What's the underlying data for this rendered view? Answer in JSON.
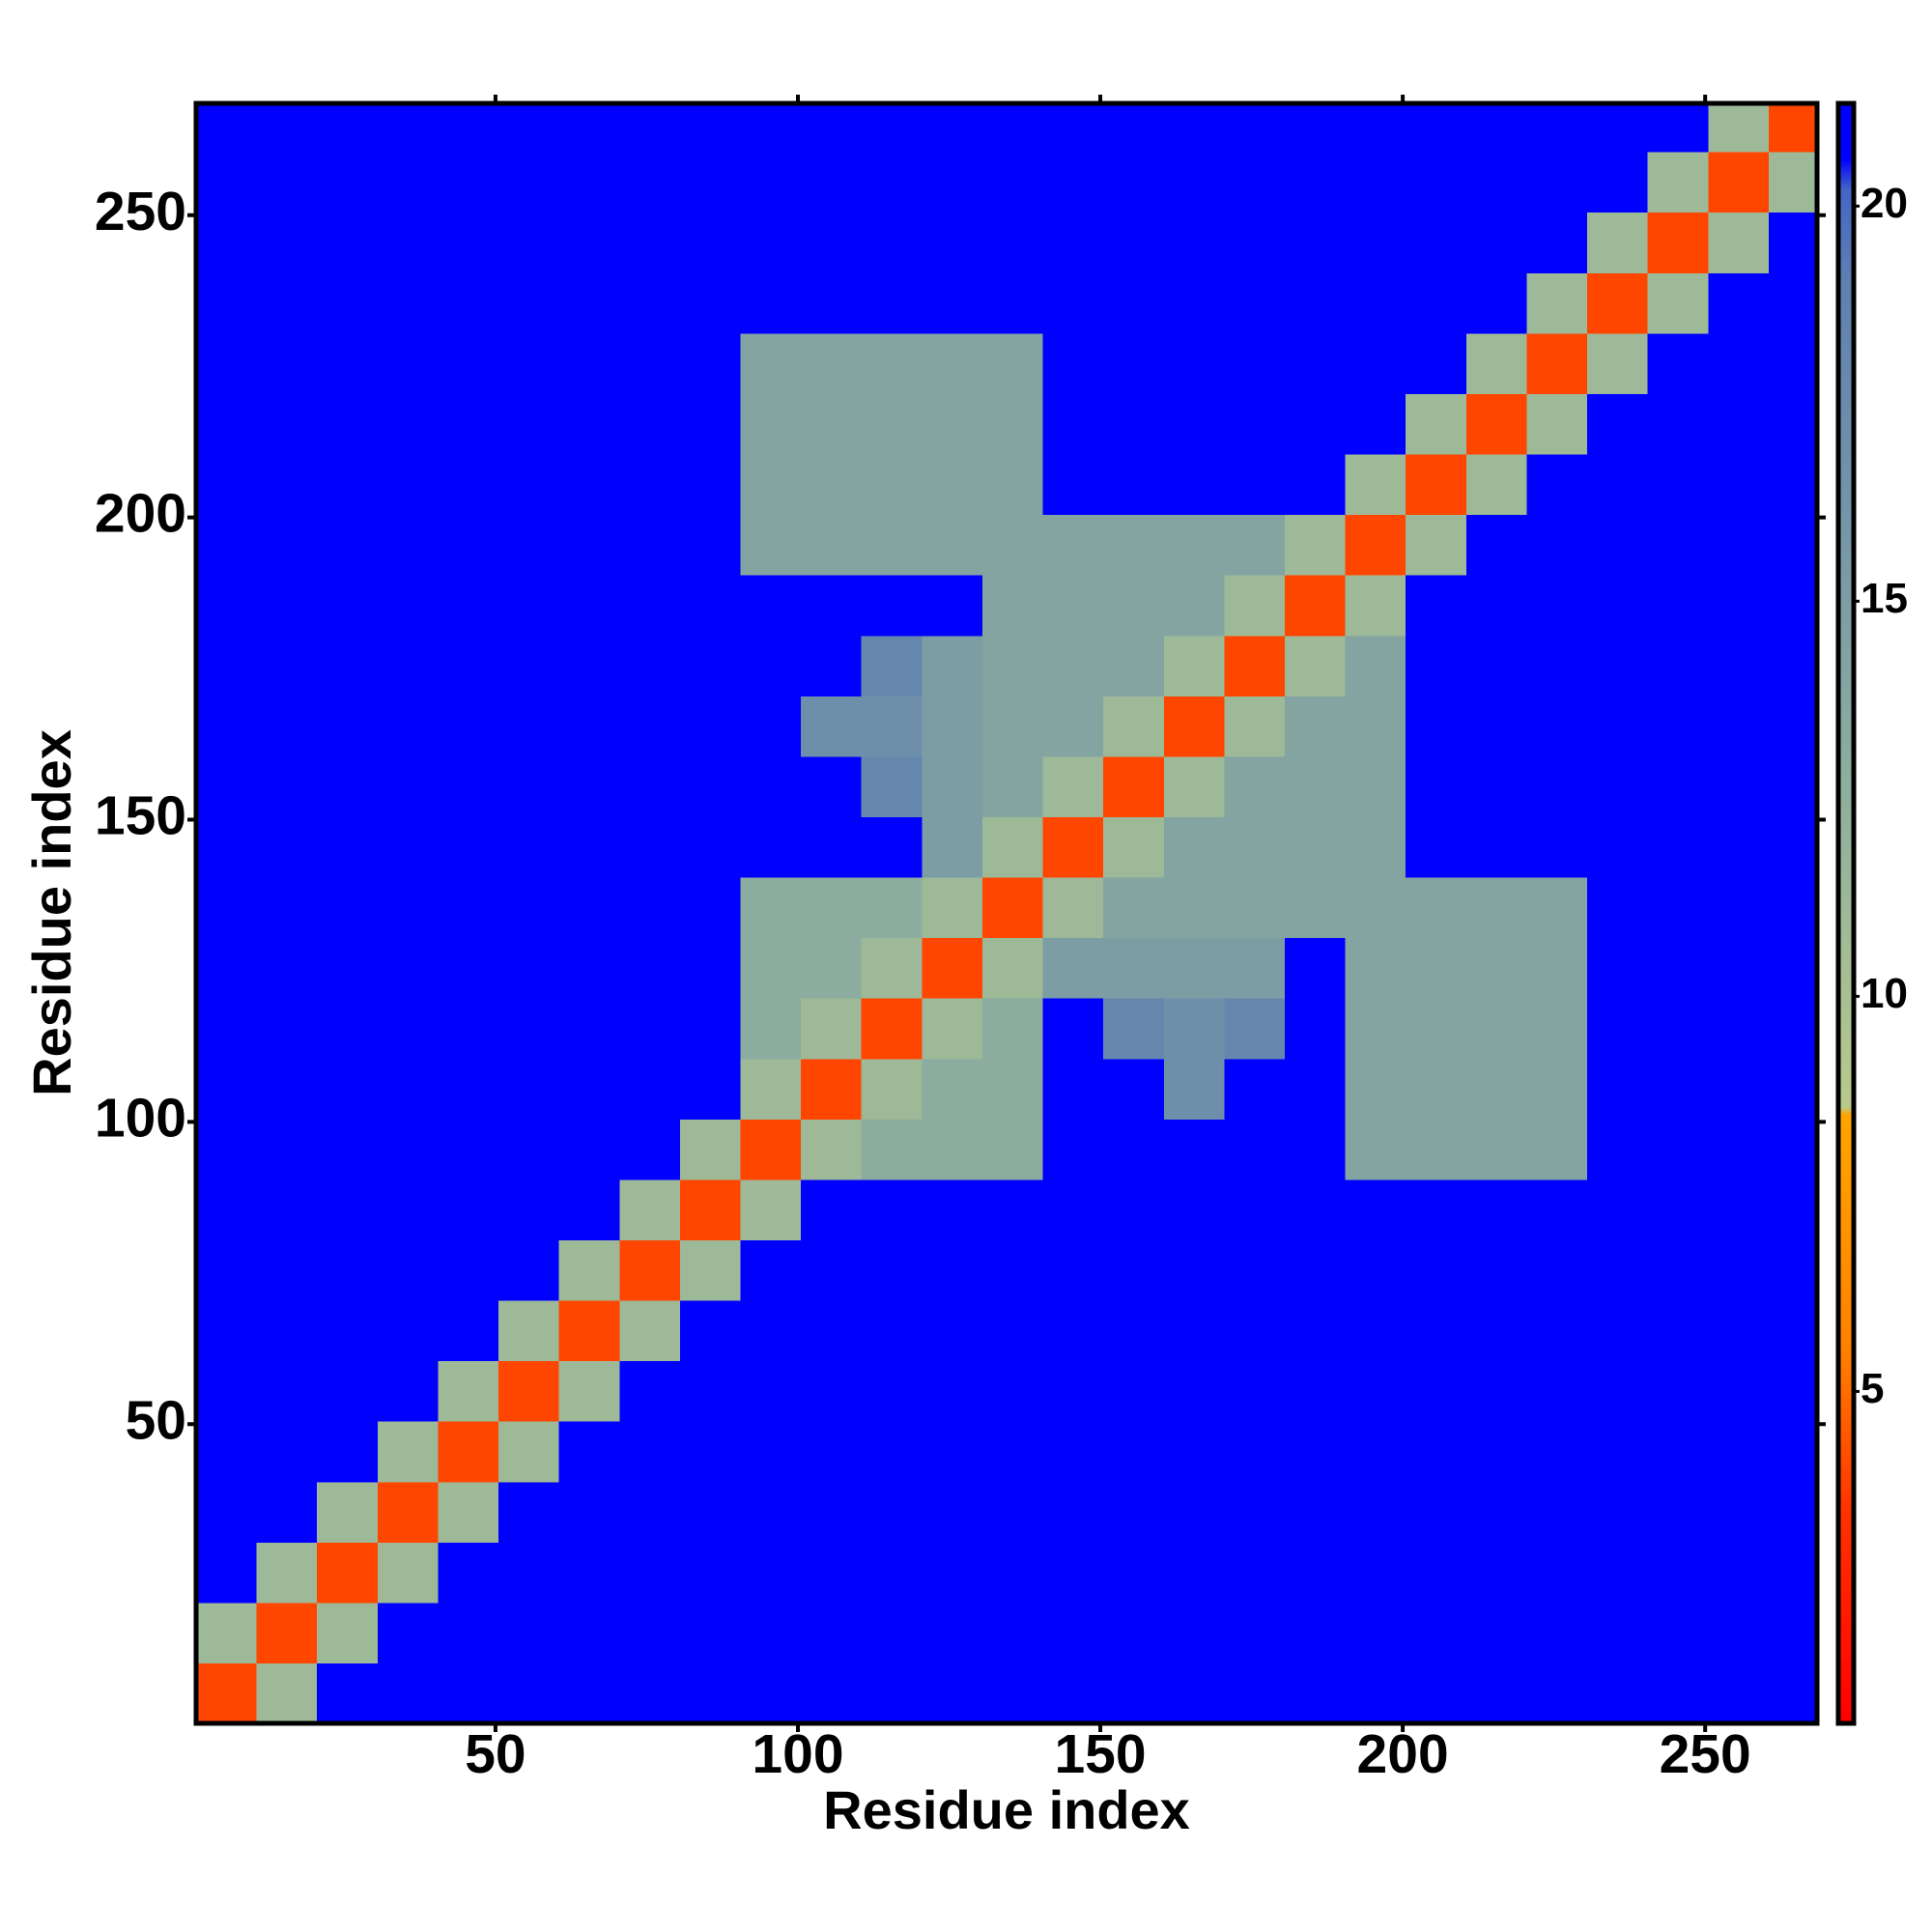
{
  "chart_data": {
    "type": "heatmap",
    "x_label": "Residue index",
    "y_label": "Residue index",
    "xlim": [
      0.5,
      268.5
    ],
    "ylim": [
      0.5,
      268.5
    ],
    "xticks": [
      50,
      100,
      150,
      200,
      250
    ],
    "yticks": [
      50,
      100,
      150,
      200,
      250
    ],
    "x_bins": [
      0.5,
      10.5,
      20.5,
      30.5,
      40.5,
      50.5,
      60.5,
      70.5,
      80.5,
      90.5,
      100.5,
      110.5,
      120.5,
      130.5,
      140.5,
      150.5,
      160.5,
      170.5,
      180.5,
      190.5,
      200.5,
      210.5,
      220.5,
      230.5,
      240.5,
      250.5,
      260.5,
      268.5
    ],
    "y_bins": [
      0.5,
      10.5,
      20.5,
      30.5,
      40.5,
      50.5,
      60.5,
      70.5,
      80.5,
      90.5,
      100.5,
      110.5,
      120.5,
      130.5,
      140.5,
      150.5,
      160.5,
      170.5,
      180.5,
      190.5,
      200.5,
      210.5,
      220.5,
      230.5,
      240.5,
      250.5,
      260.5,
      268.5
    ],
    "z": [
      [
        4,
        11,
        21,
        21,
        21,
        21,
        21,
        21,
        21,
        21,
        21,
        21,
        21,
        21,
        21,
        21,
        21,
        21,
        21,
        21,
        21,
        21,
        21,
        21,
        21,
        21,
        21
      ],
      [
        11,
        4,
        11,
        21,
        21,
        21,
        21,
        21,
        21,
        21,
        21,
        21,
        21,
        21,
        21,
        21,
        21,
        21,
        21,
        21,
        21,
        21,
        21,
        21,
        21,
        21,
        21
      ],
      [
        21,
        11,
        4,
        11,
        21,
        21,
        21,
        21,
        21,
        21,
        21,
        21,
        21,
        21,
        21,
        21,
        21,
        21,
        21,
        21,
        21,
        21,
        21,
        21,
        21,
        21,
        21
      ],
      [
        21,
        21,
        11,
        4,
        11,
        21,
        21,
        21,
        21,
        21,
        21,
        21,
        21,
        21,
        21,
        21,
        21,
        21,
        21,
        21,
        21,
        21,
        21,
        21,
        21,
        21,
        21
      ],
      [
        21,
        21,
        21,
        11,
        4,
        11,
        21,
        21,
        21,
        21,
        21,
        21,
        21,
        21,
        21,
        21,
        21,
        21,
        21,
        21,
        21,
        21,
        21,
        21,
        21,
        21,
        21
      ],
      [
        21,
        21,
        21,
        21,
        11,
        4,
        11,
        21,
        21,
        21,
        21,
        21,
        21,
        21,
        21,
        21,
        21,
        21,
        21,
        21,
        21,
        21,
        21,
        21,
        21,
        21,
        21
      ],
      [
        21,
        21,
        21,
        21,
        21,
        11,
        4,
        11,
        21,
        21,
        21,
        21,
        21,
        21,
        21,
        21,
        21,
        21,
        21,
        21,
        21,
        21,
        21,
        21,
        21,
        21,
        21
      ],
      [
        21,
        21,
        21,
        21,
        21,
        21,
        11,
        4,
        11,
        21,
        21,
        21,
        21,
        21,
        21,
        21,
        21,
        21,
        21,
        21,
        21,
        21,
        21,
        21,
        21,
        21,
        21
      ],
      [
        21,
        21,
        21,
        21,
        21,
        21,
        21,
        11,
        4,
        11,
        21,
        21,
        21,
        21,
        21,
        21,
        21,
        21,
        21,
        21,
        21,
        21,
        21,
        21,
        21,
        21,
        21
      ],
      [
        21,
        21,
        21,
        21,
        21,
        21,
        21,
        21,
        11,
        4,
        11,
        13,
        13,
        13,
        21,
        21,
        21,
        21,
        21,
        14,
        14,
        14,
        14,
        21,
        21,
        21,
        21
      ],
      [
        21,
        21,
        21,
        21,
        21,
        21,
        21,
        21,
        21,
        11,
        4,
        11,
        13,
        13,
        21,
        21,
        17,
        21,
        21,
        14,
        14,
        14,
        14,
        21,
        21,
        21,
        21
      ],
      [
        21,
        21,
        21,
        21,
        21,
        21,
        21,
        21,
        21,
        13,
        11,
        4,
        11,
        13,
        21,
        18,
        17,
        18,
        21,
        14,
        14,
        14,
        14,
        21,
        21,
        21,
        21
      ],
      [
        21,
        21,
        21,
        21,
        21,
        21,
        21,
        21,
        21,
        13,
        13,
        11,
        4,
        11,
        15,
        15,
        15,
        15,
        21,
        14,
        14,
        14,
        14,
        21,
        21,
        21,
        21
      ],
      [
        21,
        21,
        21,
        21,
        21,
        21,
        21,
        21,
        21,
        13,
        13,
        13,
        11,
        4,
        11,
        14,
        14,
        14,
        14,
        14,
        14,
        14,
        14,
        21,
        21,
        21,
        21
      ],
      [
        21,
        21,
        21,
        21,
        21,
        21,
        21,
        21,
        21,
        21,
        21,
        21,
        15,
        11,
        4,
        11,
        14,
        14,
        14,
        14,
        21,
        21,
        21,
        21,
        21,
        21,
        21
      ],
      [
        21,
        21,
        21,
        21,
        21,
        21,
        21,
        21,
        21,
        21,
        21,
        18,
        15,
        14,
        11,
        4,
        11,
        14,
        14,
        14,
        21,
        21,
        21,
        21,
        21,
        21,
        21
      ],
      [
        21,
        21,
        21,
        21,
        21,
        21,
        21,
        21,
        21,
        21,
        17,
        17,
        15,
        14,
        14,
        11,
        4,
        11,
        14,
        14,
        21,
        21,
        21,
        21,
        21,
        21,
        21
      ],
      [
        21,
        21,
        21,
        21,
        21,
        21,
        21,
        21,
        21,
        21,
        21,
        18,
        15,
        14,
        14,
        14,
        11,
        4,
        11,
        14,
        21,
        21,
        21,
        21,
        21,
        21,
        21
      ],
      [
        21,
        21,
        21,
        21,
        21,
        21,
        21,
        21,
        21,
        21,
        21,
        21,
        21,
        14,
        14,
        14,
        14,
        11,
        4,
        11,
        21,
        21,
        21,
        21,
        21,
        21,
        21
      ],
      [
        21,
        21,
        21,
        21,
        21,
        21,
        21,
        21,
        21,
        14,
        14,
        14,
        14,
        14,
        14,
        14,
        14,
        14,
        11,
        4,
        11,
        21,
        21,
        21,
        21,
        21,
        21
      ],
      [
        21,
        21,
        21,
        21,
        21,
        21,
        21,
        21,
        21,
        14,
        14,
        14,
        14,
        14,
        21,
        21,
        21,
        21,
        21,
        11,
        4,
        11,
        21,
        21,
        21,
        21,
        21
      ],
      [
        21,
        21,
        21,
        21,
        21,
        21,
        21,
        21,
        21,
        14,
        14,
        14,
        14,
        14,
        21,
        21,
        21,
        21,
        21,
        21,
        11,
        4,
        11,
        21,
        21,
        21,
        21
      ],
      [
        21,
        21,
        21,
        21,
        21,
        21,
        21,
        21,
        21,
        14,
        14,
        14,
        14,
        14,
        21,
        21,
        21,
        21,
        21,
        21,
        21,
        11,
        4,
        11,
        21,
        21,
        21
      ],
      [
        21,
        21,
        21,
        21,
        21,
        21,
        21,
        21,
        21,
        21,
        21,
        21,
        21,
        21,
        21,
        21,
        21,
        21,
        21,
        21,
        21,
        21,
        11,
        4,
        11,
        21,
        21
      ],
      [
        21,
        21,
        21,
        21,
        21,
        21,
        21,
        21,
        21,
        21,
        21,
        21,
        21,
        21,
        21,
        21,
        21,
        21,
        21,
        21,
        21,
        21,
        21,
        11,
        4,
        11,
        21
      ],
      [
        21,
        21,
        21,
        21,
        21,
        21,
        21,
        21,
        21,
        21,
        21,
        21,
        21,
        21,
        21,
        21,
        21,
        21,
        21,
        21,
        21,
        21,
        21,
        21,
        11,
        4,
        11
      ],
      [
        21,
        21,
        21,
        21,
        21,
        21,
        21,
        21,
        21,
        21,
        21,
        21,
        21,
        21,
        21,
        21,
        21,
        21,
        21,
        21,
        21,
        21,
        21,
        21,
        21,
        11,
        4
      ]
    ],
    "colorbar": {
      "lim": [
        0.8,
        21.3
      ],
      "ticks": [
        5,
        10,
        15,
        20
      ],
      "colorscale": [
        {
          "value": 0.8,
          "color": "#ff0000"
        },
        {
          "value": 3.5,
          "color": "#ff3300"
        },
        {
          "value": 5.5,
          "color": "#ff8000"
        },
        {
          "value": 8.5,
          "color": "#ffa500"
        },
        {
          "value": 8.6,
          "color": "#b8c98c"
        },
        {
          "value": 12,
          "color": "#93b39c"
        },
        {
          "value": 19,
          "color": "#5f80b0"
        },
        {
          "value": 20.2,
          "color": "#4466c4"
        },
        {
          "value": 20.6,
          "color": "#0000ff"
        },
        {
          "value": 21.3,
          "color": "#0000ff"
        }
      ]
    }
  }
}
